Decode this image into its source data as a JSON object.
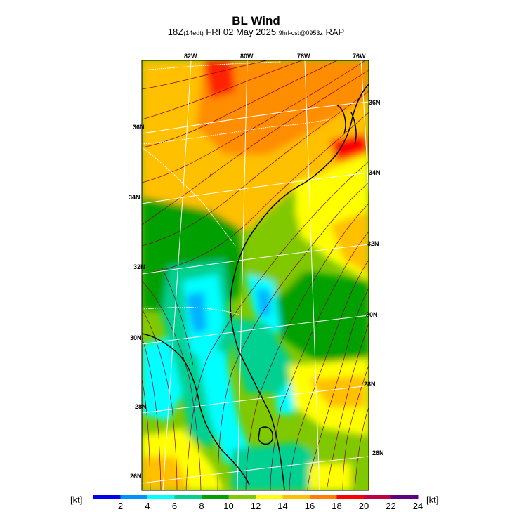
{
  "title": "BL Wind",
  "subtitle": {
    "time": "18Z",
    "local": "(14edt)",
    "date": "FRI 02 May 2025",
    "run": "9hrl-cst@0953z",
    "model": "RAP"
  },
  "lon_labels": [
    "82W",
    "80W",
    "78W",
    "76W"
  ],
  "lat_left_labels": [
    "36N",
    "34N",
    "32N",
    "30N",
    "28N",
    "26N"
  ],
  "lat_right_labels": [
    "36N",
    "34N",
    "32N",
    "30N",
    "28N",
    "26N"
  ],
  "colorbar": {
    "unit_left": "[kt]",
    "unit_right": "[kt]",
    "ticks": [
      "2",
      "4",
      "6",
      "8",
      "10",
      "12",
      "14",
      "16",
      "18",
      "20",
      "22",
      "24"
    ],
    "colors": [
      "#0000f0",
      "#0090ff",
      "#00ffff",
      "#00d090",
      "#00a000",
      "#80c800",
      "#ffff00",
      "#ffc000",
      "#ff8000",
      "#ff0000",
      "#c00040",
      "#600080"
    ]
  }
}
